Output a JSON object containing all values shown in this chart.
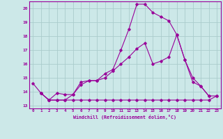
{
  "xlabel": "Windchill (Refroidissement éolien,°C)",
  "bg_color": "#cce8e8",
  "line_color": "#990099",
  "grid_color": "#aacccc",
  "xlim": [
    -0.5,
    23.5
  ],
  "ylim": [
    12.8,
    20.5
  ],
  "xticks": [
    0,
    1,
    2,
    3,
    4,
    5,
    6,
    7,
    8,
    9,
    10,
    11,
    12,
    13,
    14,
    15,
    16,
    17,
    18,
    19,
    20,
    21,
    22,
    23
  ],
  "yticks": [
    13,
    14,
    15,
    16,
    17,
    18,
    19,
    20
  ],
  "series": [
    {
      "x": [
        0,
        1,
        2,
        3,
        4,
        5,
        6,
        7,
        8,
        9,
        10,
        11,
        12,
        13,
        14,
        15,
        16,
        17,
        18,
        19,
        20,
        21,
        22
      ],
      "y": [
        14.6,
        13.9,
        13.4,
        13.9,
        13.8,
        13.8,
        14.7,
        14.8,
        14.8,
        15.3,
        15.6,
        17.0,
        18.5,
        20.3,
        20.3,
        19.7,
        19.4,
        19.1,
        18.1,
        16.3,
        14.7,
        14.4,
        13.7
      ]
    },
    {
      "x": [
        1,
        2,
        3,
        4,
        5,
        6,
        7,
        8,
        9,
        10,
        11,
        12,
        13,
        14,
        15,
        16,
        17,
        18,
        19,
        20,
        21,
        22,
        23
      ],
      "y": [
        13.9,
        13.4,
        13.4,
        13.4,
        13.4,
        13.4,
        13.4,
        13.4,
        13.4,
        13.4,
        13.4,
        13.4,
        13.4,
        13.4,
        13.4,
        13.4,
        13.4,
        13.4,
        13.4,
        13.4,
        13.4,
        13.4,
        13.7
      ]
    },
    {
      "x": [
        1,
        2,
        3,
        4,
        5,
        6,
        7,
        8,
        9,
        10,
        11,
        12,
        13,
        14,
        15,
        16,
        17,
        18,
        19,
        20,
        21,
        22,
        23
      ],
      "y": [
        13.9,
        13.4,
        13.4,
        13.4,
        13.8,
        14.5,
        14.8,
        14.8,
        15.0,
        15.5,
        16.0,
        16.5,
        17.1,
        17.5,
        16.0,
        16.2,
        16.5,
        18.1,
        16.3,
        15.0,
        14.4,
        13.7,
        13.7
      ]
    }
  ]
}
